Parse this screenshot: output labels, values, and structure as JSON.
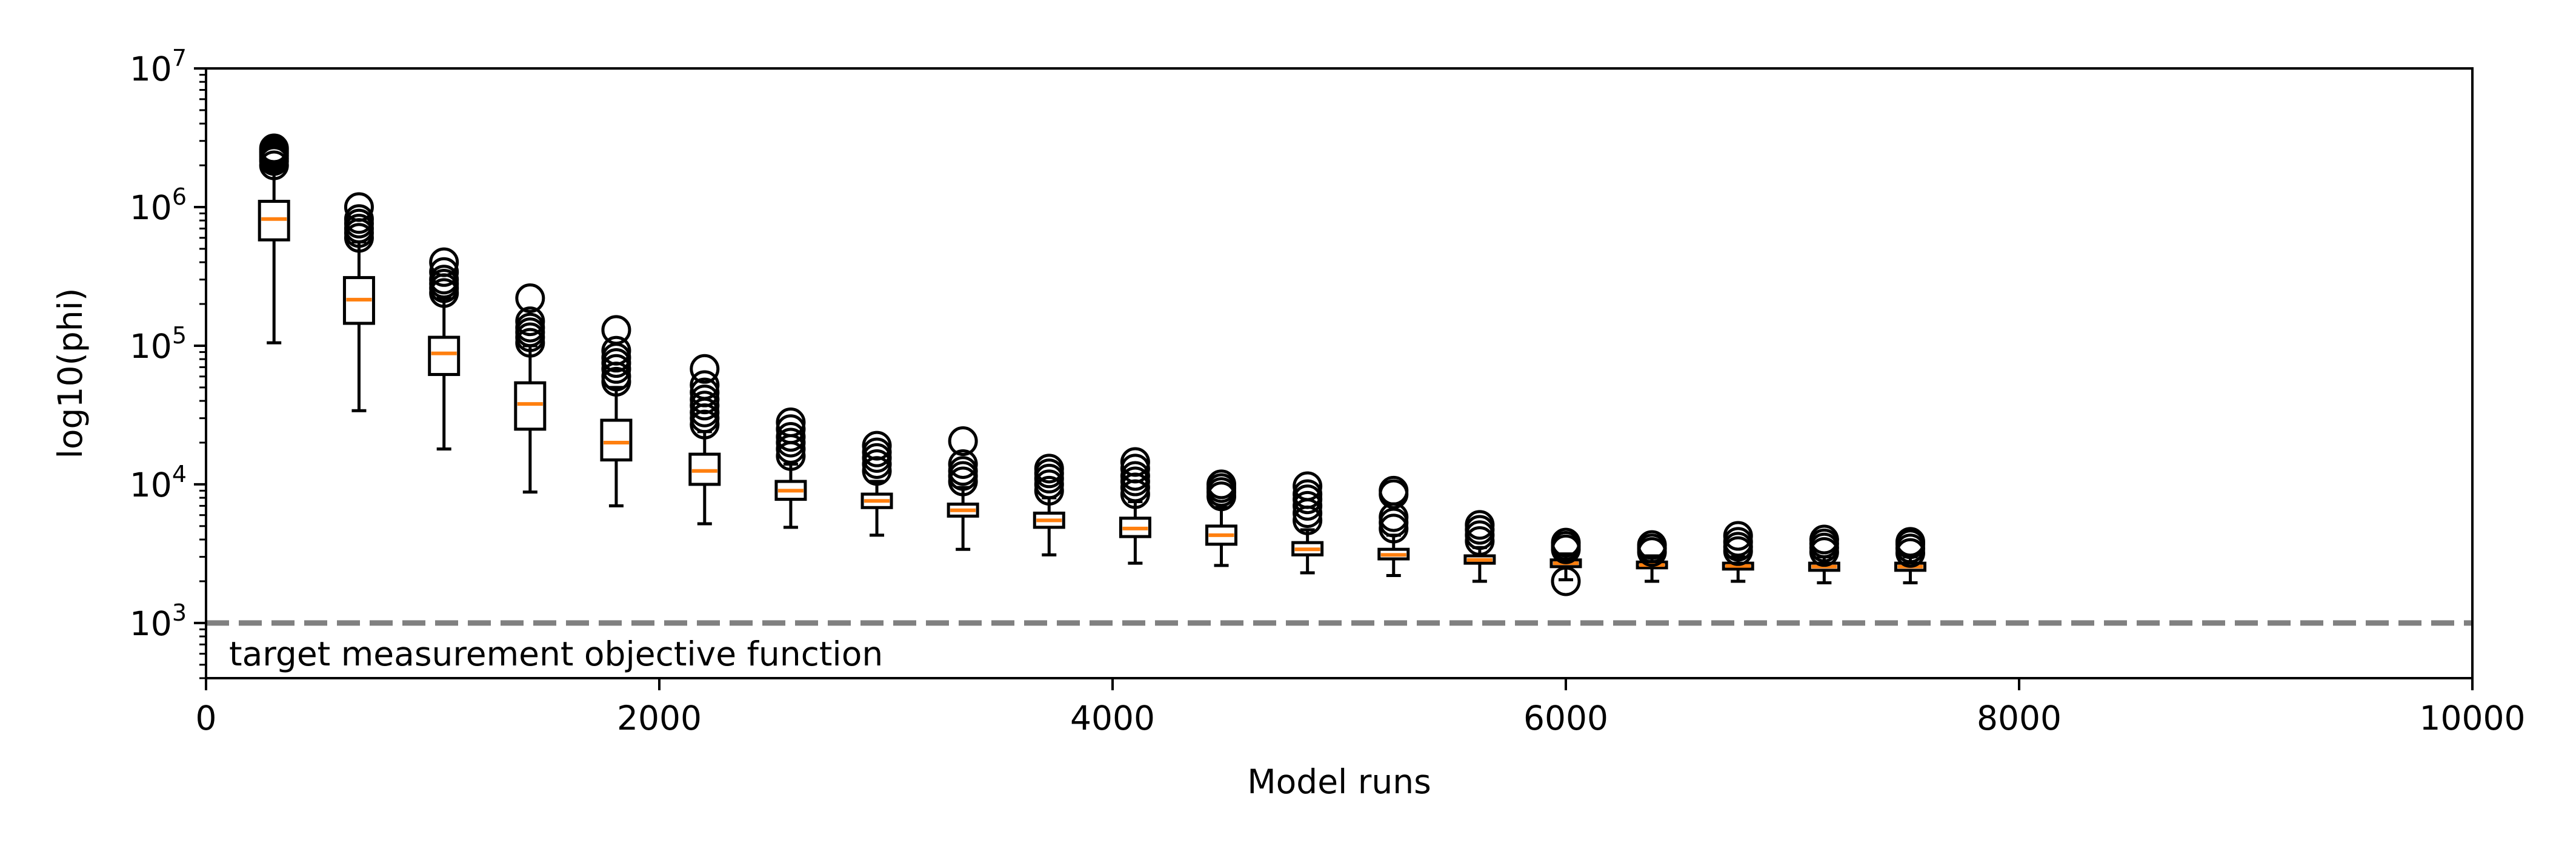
{
  "chart_data": {
    "type": "box",
    "xlabel": "Model runs",
    "ylabel": "log10(phi)",
    "xlim": [
      0,
      10000
    ],
    "ylim": [
      400,
      10000000
    ],
    "yscale": "log",
    "x_ticks": [
      0,
      2000,
      4000,
      6000,
      8000,
      10000
    ],
    "x_tick_labels": [
      "0",
      "2000",
      "4000",
      "6000",
      "8000",
      "10000"
    ],
    "y_ticks": [
      1000,
      10000,
      100000,
      1000000,
      10000000
    ],
    "y_tick_bases": [
      "10",
      "10",
      "10",
      "10",
      "10"
    ],
    "y_tick_exponents": [
      "3",
      "4",
      "5",
      "6",
      "7"
    ],
    "grid": false,
    "colors": {
      "box": "#000000",
      "median": "#ff7f0e",
      "target_line": "#808080"
    },
    "target_line": {
      "y": 1000,
      "label": "target measurement objective function"
    },
    "boxes": [
      {
        "x": 300,
        "whislo": 105000,
        "q1": 580000,
        "med": 820000,
        "q3": 1100000,
        "whishi": 1850000,
        "fliers": [
          2000000,
          2150000,
          2250000,
          2350000,
          2450000,
          2550000,
          2650000
        ]
      },
      {
        "x": 675,
        "whislo": 34000,
        "q1": 145000,
        "med": 215000,
        "q3": 310000,
        "whishi": 560000,
        "fliers": [
          600000,
          650000,
          700000,
          760000,
          820000,
          1000000
        ]
      },
      {
        "x": 1050,
        "whislo": 18000,
        "q1": 62000,
        "med": 88000,
        "q3": 115000,
        "whishi": 220000,
        "fliers": [
          240000,
          260000,
          280000,
          300000,
          340000,
          400000
        ]
      },
      {
        "x": 1430,
        "whislo": 8800,
        "q1": 25000,
        "med": 38000,
        "q3": 54000,
        "whishi": 100000,
        "fliers": [
          105000,
          115000,
          125000,
          135000,
          150000,
          220000
        ]
      },
      {
        "x": 1810,
        "whislo": 7000,
        "q1": 15000,
        "med": 20000,
        "q3": 29000,
        "whishi": 50000,
        "fliers": [
          55000,
          60000,
          68000,
          75000,
          82000,
          92000,
          130000
        ]
      },
      {
        "x": 2200,
        "whislo": 5200,
        "q1": 10000,
        "med": 12500,
        "q3": 16500,
        "whishi": 24000,
        "fliers": [
          27000,
          30000,
          33000,
          37000,
          41000,
          46000,
          52000,
          68000
        ]
      },
      {
        "x": 2580,
        "whislo": 4900,
        "q1": 7800,
        "med": 9000,
        "q3": 10500,
        "whishi": 14000,
        "fliers": [
          16000,
          18000,
          20000,
          22000,
          25000,
          28000
        ]
      },
      {
        "x": 2960,
        "whislo": 4300,
        "q1": 6800,
        "med": 7600,
        "q3": 8500,
        "whishi": 10500,
        "fliers": [
          12500,
          14000,
          15500,
          17000,
          19000
        ]
      },
      {
        "x": 3340,
        "whislo": 3400,
        "q1": 5900,
        "med": 6500,
        "q3": 7200,
        "whishi": 9500,
        "fliers": [
          10500,
          11500,
          12500,
          14000,
          20500
        ]
      },
      {
        "x": 3720,
        "whislo": 3100,
        "q1": 4900,
        "med": 5500,
        "q3": 6200,
        "whishi": 8000,
        "fliers": [
          9000,
          10000,
          11000,
          12000,
          13000
        ]
      },
      {
        "x": 4100,
        "whislo": 2700,
        "q1": 4200,
        "med": 4800,
        "q3": 5700,
        "whishi": 7500,
        "fliers": [
          8500,
          9500,
          10500,
          11500,
          13000,
          14500
        ]
      },
      {
        "x": 4480,
        "whislo": 2600,
        "q1": 3700,
        "med": 4300,
        "q3": 5000,
        "whishi": 6800,
        "fliers": [
          8200,
          8800,
          9400,
          10000
        ]
      },
      {
        "x": 4860,
        "whislo": 2300,
        "q1": 3100,
        "med": 3400,
        "q3": 3800,
        "whishi": 4700,
        "fliers": [
          5500,
          6200,
          7000,
          7800,
          8500,
          9700
        ]
      },
      {
        "x": 5240,
        "whislo": 2200,
        "q1": 2900,
        "med": 3100,
        "q3": 3400,
        "whishi": 4300,
        "fliers": [
          4800,
          5300,
          5800,
          8500,
          9000
        ]
      },
      {
        "x": 5620,
        "whislo": 2000,
        "q1": 2700,
        "med": 2850,
        "q3": 3050,
        "whishi": 3500,
        "fliers": [
          3900,
          4300,
          4700,
          5100
        ]
      },
      {
        "x": 6000,
        "whislo": 2050,
        "q1": 2550,
        "med": 2700,
        "q3": 2850,
        "whishi": 3150,
        "fliers": [
          3400,
          3600,
          3800,
          2000
        ]
      },
      {
        "x": 6380,
        "whislo": 2000,
        "q1": 2500,
        "med": 2620,
        "q3": 2750,
        "whishi": 3050,
        "fliers": [
          3250,
          3450,
          3650
        ]
      },
      {
        "x": 6760,
        "whislo": 2000,
        "q1": 2450,
        "med": 2580,
        "q3": 2700,
        "whishi": 3000,
        "fliers": [
          3300,
          3550,
          3850,
          4250
        ]
      },
      {
        "x": 7140,
        "whislo": 1950,
        "q1": 2400,
        "med": 2550,
        "q3": 2700,
        "whishi": 3000,
        "fliers": [
          3250,
          3500,
          3750,
          4000
        ]
      },
      {
        "x": 7520,
        "whislo": 1950,
        "q1": 2400,
        "med": 2550,
        "q3": 2700,
        "whishi": 3000,
        "fliers": [
          3200,
          3450,
          3700,
          3850
        ]
      }
    ]
  }
}
